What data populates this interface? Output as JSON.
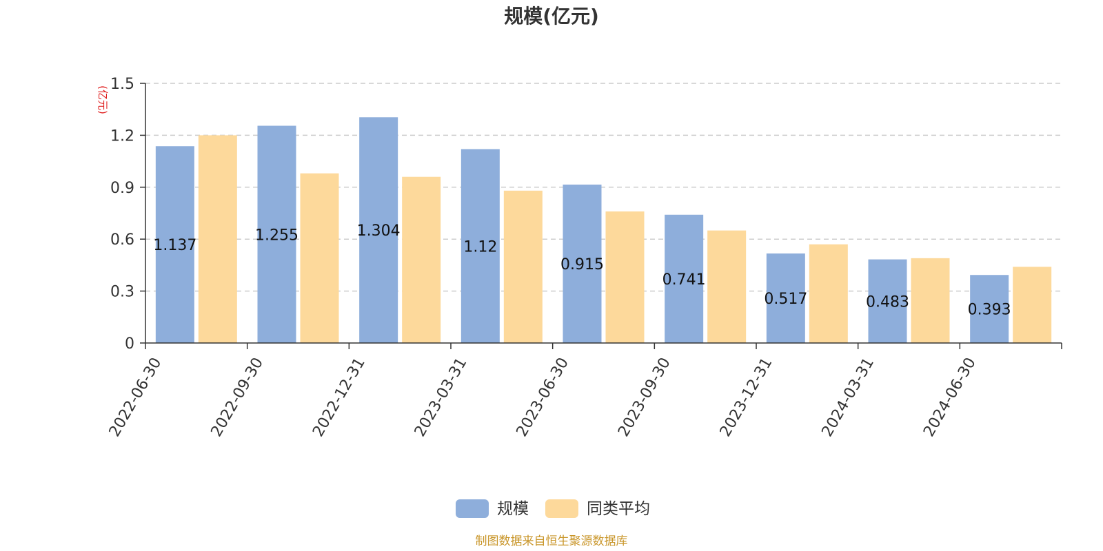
{
  "chart_data": {
    "type": "bar",
    "title": "规模(亿元)",
    "ylabel": "(亿元)",
    "xlabel": "",
    "ylim": [
      0,
      1.5
    ],
    "yticks": [
      0,
      0.3,
      0.6,
      0.9,
      1.2,
      1.5
    ],
    "ytick_labels": [
      "0",
      "0.3",
      "0.6",
      "0.9",
      "1.2",
      "1.5"
    ],
    "grid": true,
    "legend_position": "bottom-center",
    "categories": [
      "2022-06-30",
      "2022-09-30",
      "2022-12-31",
      "2023-03-31",
      "2023-06-30",
      "2023-09-30",
      "2023-12-31",
      "2024-03-31",
      "2024-06-30"
    ],
    "series": [
      {
        "name": "规模",
        "color": "#8eaedb",
        "values": [
          1.137,
          1.255,
          1.304,
          1.12,
          0.915,
          0.741,
          0.517,
          0.483,
          0.393
        ],
        "labels": [
          "1.137",
          "1.255",
          "1.304",
          "1.12",
          "0.915",
          "0.741",
          "0.517",
          "0.483",
          "0.393"
        ]
      },
      {
        "name": "同类平均",
        "color": "#fdd99b",
        "values": [
          1.2,
          0.98,
          0.96,
          0.88,
          0.76,
          0.65,
          0.57,
          0.49,
          0.44
        ]
      }
    ]
  },
  "footer": {
    "source": "制图数据来自恒生聚源数据库"
  }
}
